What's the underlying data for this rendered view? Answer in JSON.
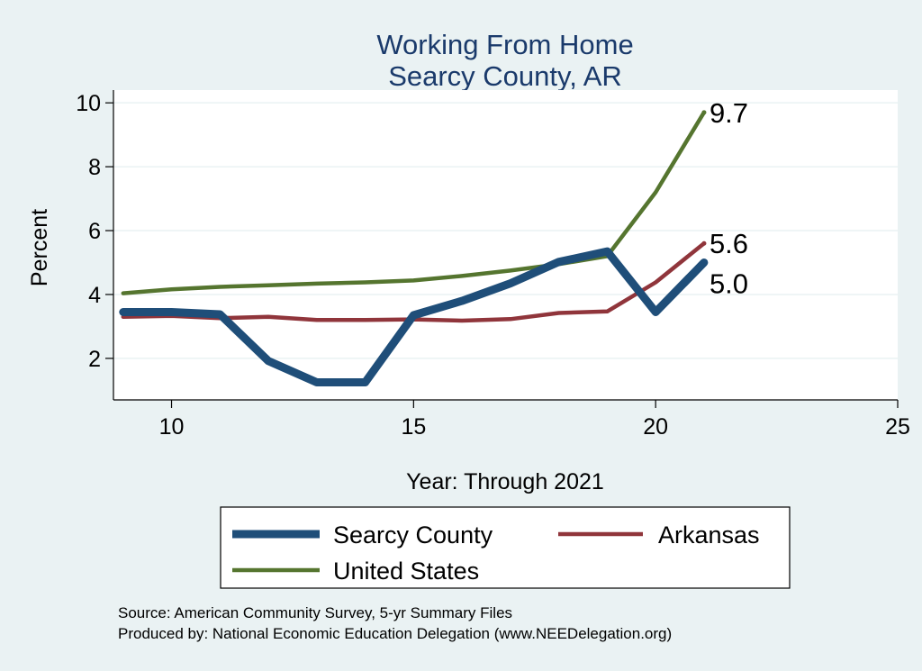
{
  "chart_data": {
    "type": "line",
    "title": [
      "Working From Home",
      "Searcy County, AR"
    ],
    "xlabel": "Year: Through 2021",
    "ylabel": "Percent",
    "xlim": [
      8.8,
      25
    ],
    "ylim": [
      0.7,
      10.4
    ],
    "xticks": [
      10,
      15,
      20,
      25
    ],
    "yticks": [
      2,
      4,
      6,
      8,
      10
    ],
    "grid": true,
    "legend_position": "bottom",
    "x": [
      9,
      10,
      11,
      12,
      13,
      14,
      15,
      16,
      17,
      18,
      19,
      20,
      21
    ],
    "series": [
      {
        "name": "Searcy County",
        "color": "#1f4e79",
        "width": 9,
        "values": [
          3.45,
          3.45,
          3.38,
          1.92,
          1.25,
          1.25,
          3.35,
          3.8,
          4.35,
          5.02,
          5.35,
          3.45,
          5.0
        ],
        "end_label": "5.0"
      },
      {
        "name": "Arkansas",
        "color": "#90353b",
        "width": 4.5,
        "values": [
          3.3,
          3.33,
          3.26,
          3.3,
          3.2,
          3.2,
          3.22,
          3.18,
          3.23,
          3.42,
          3.47,
          4.38,
          5.6
        ],
        "end_label": "5.6"
      },
      {
        "name": "United States",
        "color": "#55752f",
        "width": 4.5,
        "values": [
          4.04,
          4.16,
          4.24,
          4.29,
          4.34,
          4.38,
          4.44,
          4.58,
          4.75,
          4.95,
          5.2,
          7.2,
          9.7
        ],
        "end_label": "9.7"
      }
    ],
    "source_notes": [
      "Source: American Community Survey, 5-yr Summary Files",
      "Produced by: National Economic Education Delegation (www.NEEDelegation.org)"
    ]
  },
  "colors": {
    "background": "#eaf2f3",
    "plot_background": "#ffffff",
    "title": "#1a3a6b",
    "grid": "#eaf2f3"
  }
}
